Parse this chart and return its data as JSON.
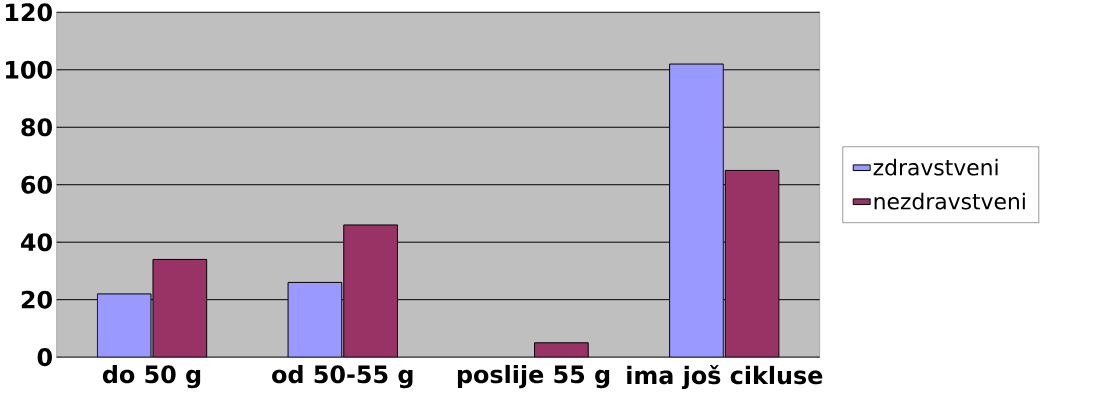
{
  "chart_data": {
    "type": "bar",
    "categories": [
      "do 50 g",
      "od 50-55 g",
      "poslije 55 g",
      "ima još cikluse"
    ],
    "series": [
      {
        "name": "zdravstveni",
        "color": "#9999ff",
        "values": [
          22,
          26,
          null,
          102
        ]
      },
      {
        "name": "nezdravstveni",
        "color": "#993366",
        "values": [
          34,
          46,
          5,
          65
        ]
      }
    ],
    "ylim": [
      0,
      120
    ],
    "yticks": [
      0,
      20,
      40,
      60,
      80,
      100,
      120
    ],
    "grid": "y",
    "legend": "right"
  }
}
